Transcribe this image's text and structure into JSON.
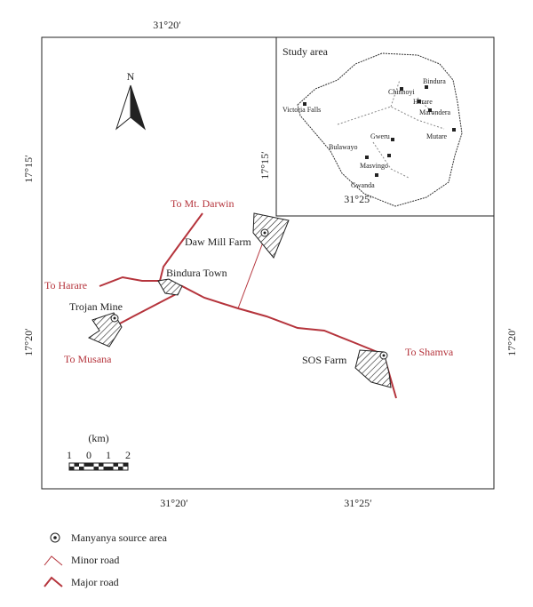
{
  "graticule": {
    "top": "31°20′",
    "left": [
      "17°15′",
      "17°20′"
    ],
    "right": [
      "17°15′",
      "17°20′"
    ],
    "bottom": [
      "31°20′",
      "31°25′"
    ]
  },
  "inset": {
    "title": "Study area",
    "bottom_label": "31°25′",
    "cities": [
      "Bindura",
      "Chinhoyi",
      "Harare",
      "Marondera",
      "Victoria Falls",
      "Gweru",
      "Mutare",
      "Bulawayo",
      "Masvingo",
      "Gwanda"
    ]
  },
  "north": "N",
  "places": {
    "mt_darwin": "To Mt. Darwin",
    "daw_mill": "Daw Mill Farm",
    "bindura": "Bindura Town",
    "harare": "To Harare",
    "trojan": "Trojan Mine",
    "musana": "To Musana",
    "sos": "SOS Farm",
    "shamva": "To Shamva"
  },
  "scale": {
    "unit": "(km)",
    "ticks": [
      "1",
      "0",
      "1",
      "2"
    ]
  },
  "legend": [
    "Manyanya source area",
    "Minor road",
    "Major road"
  ]
}
